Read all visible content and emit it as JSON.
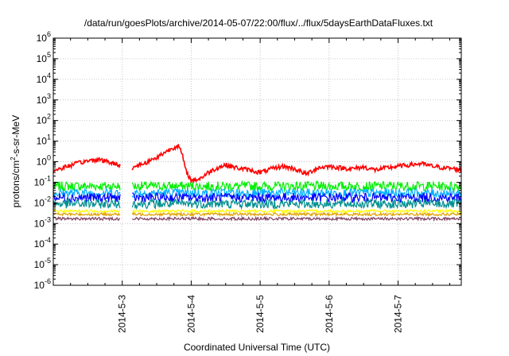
{
  "chart_data": {
    "type": "line",
    "title": "/data/run/goesPlots/archive/2014-05-07/22:00/flux/../flux/5daysEarthDataFluxes.txt",
    "xlabel": "Coordinated Universal Time (UTC)",
    "ylabel": {
      "base": "protons/cm",
      "sup": "2",
      "rest": "-s-sr-MeV"
    },
    "x_scale": "time",
    "y_scale": "log",
    "xlim": [
      "2014-05-02 00:00",
      "2014-05-07 22:00"
    ],
    "ylim": [
      1e-06,
      1000000.0
    ],
    "grid": true,
    "legend": "none",
    "x_ticks": [
      "2014-5-3",
      "2014-5-4",
      "2014-5-5",
      "2014-5-6",
      "2014-5-7"
    ],
    "y_ticks": [
      {
        "base": "10",
        "exp": "-6",
        "value": 1e-06
      },
      {
        "base": "10",
        "exp": "-5",
        "value": 1e-05
      },
      {
        "base": "10",
        "exp": "-4",
        "value": 0.0001
      },
      {
        "base": "10",
        "exp": "-3",
        "value": 0.001
      },
      {
        "base": "10",
        "exp": "-2",
        "value": 0.01
      },
      {
        "base": "10",
        "exp": "-1",
        "value": 0.1
      },
      {
        "base": "10",
        "exp": "0",
        "value": 1
      },
      {
        "base": "10",
        "exp": "1",
        "value": 10
      },
      {
        "base": "10",
        "exp": "2",
        "value": 100
      },
      {
        "base": "10",
        "exp": "3",
        "value": 1000
      },
      {
        "base": "10",
        "exp": "4",
        "value": 10000
      },
      {
        "base": "10",
        "exp": "5",
        "value": 100000
      },
      {
        "base": "10",
        "exp": "6",
        "value": 1000000
      }
    ],
    "data_gap": [
      "2014-05-02 23:20",
      "2014-05-03 03:30"
    ],
    "series": [
      {
        "color": "#ff0000",
        "points": [
          [
            "2014-05-02 00:00",
            0.35
          ],
          [
            "2014-05-02 04:00",
            0.55
          ],
          [
            "2014-05-02 08:00",
            0.8
          ],
          [
            "2014-05-02 12:00",
            1.1
          ],
          [
            "2014-05-02 16:00",
            1.3
          ],
          [
            "2014-05-02 20:00",
            0.9
          ],
          [
            "2014-05-02 23:00",
            0.7
          ],
          [
            "2014-05-03 03:30",
            0.5
          ],
          [
            "2014-05-03 06:00",
            0.7
          ],
          [
            "2014-05-03 09:00",
            1.0
          ],
          [
            "2014-05-03 12:00",
            1.6
          ],
          [
            "2014-05-03 15:00",
            3.0
          ],
          [
            "2014-05-03 18:00",
            5.0
          ],
          [
            "2014-05-03 19:30",
            6.0
          ],
          [
            "2014-05-03 21:00",
            2.0
          ],
          [
            "2014-05-03 22:00",
            0.4
          ],
          [
            "2014-05-04 00:00",
            0.12
          ],
          [
            "2014-05-04 03:00",
            0.15
          ],
          [
            "2014-05-04 06:00",
            0.3
          ],
          [
            "2014-05-04 09:00",
            0.5
          ],
          [
            "2014-05-04 12:00",
            0.7
          ],
          [
            "2014-05-04 16:00",
            0.5
          ],
          [
            "2014-05-04 20:00",
            0.4
          ],
          [
            "2014-05-05 00:00",
            0.3
          ],
          [
            "2014-05-05 04:00",
            0.45
          ],
          [
            "2014-05-05 08:00",
            0.6
          ],
          [
            "2014-05-05 12:00",
            0.45
          ],
          [
            "2014-05-05 16:00",
            0.25
          ],
          [
            "2014-05-05 20:00",
            0.5
          ],
          [
            "2014-05-06 00:00",
            0.6
          ],
          [
            "2014-05-06 04:00",
            0.5
          ],
          [
            "2014-05-06 08:00",
            0.45
          ],
          [
            "2014-05-06 12:00",
            0.55
          ],
          [
            "2014-05-06 16:00",
            0.4
          ],
          [
            "2014-05-06 20:00",
            0.5
          ],
          [
            "2014-05-07 00:00",
            0.6
          ],
          [
            "2014-05-07 04:00",
            0.7
          ],
          [
            "2014-05-07 08:00",
            0.8
          ],
          [
            "2014-05-07 12:00",
            0.6
          ],
          [
            "2014-05-07 16:00",
            0.5
          ],
          [
            "2014-05-07 20:00",
            0.45
          ],
          [
            "2014-05-07 22:00",
            0.4
          ]
        ]
      },
      {
        "color": "#00ee00",
        "level": 0.065
      },
      {
        "color": "#00b0ff",
        "level": 0.03
      },
      {
        "color": "#0000ff",
        "level": 0.018
      },
      {
        "color": "#009090",
        "level": 0.009
      },
      {
        "color": "#ffff00",
        "level": 0.004
      },
      {
        "color": "#e0a000",
        "level": 0.0028
      },
      {
        "color": "#804060",
        "level": 0.0017
      }
    ]
  }
}
